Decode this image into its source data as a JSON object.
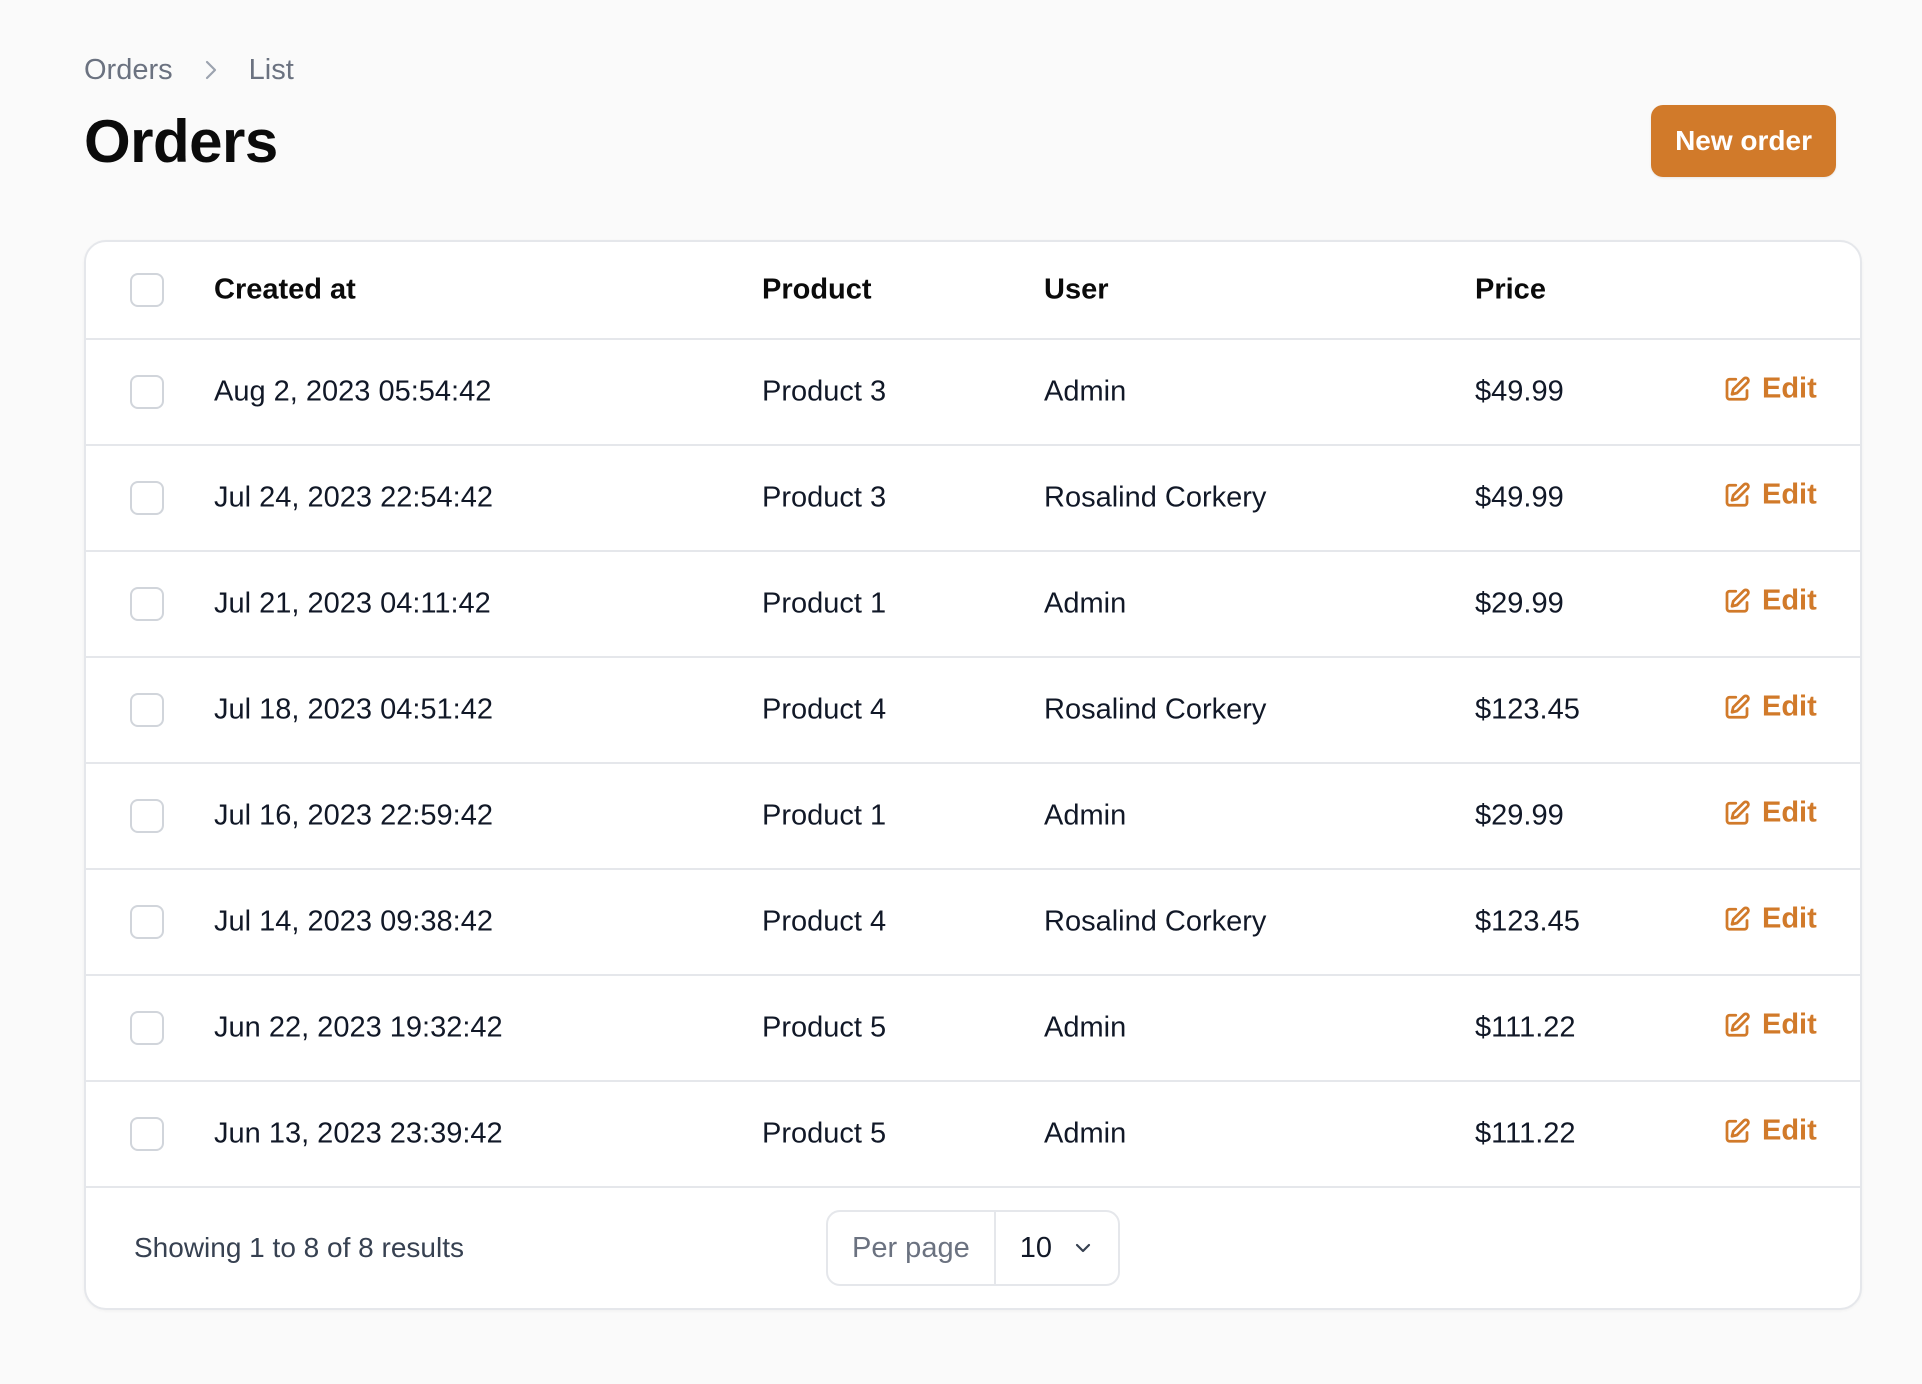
{
  "breadcrumb": {
    "items": [
      "Orders",
      "List"
    ]
  },
  "header": {
    "title": "Orders",
    "new_order_label": "New order"
  },
  "table": {
    "columns": {
      "created_at": "Created at",
      "product": "Product",
      "user": "User",
      "price": "Price"
    },
    "rows": [
      {
        "created_at": "Aug 2, 2023 05:54:42",
        "product": "Product 3",
        "user": "Admin",
        "price": "$49.99",
        "action": "Edit"
      },
      {
        "created_at": "Jul 24, 2023 22:54:42",
        "product": "Product 3",
        "user": "Rosalind Corkery",
        "price": "$49.99",
        "action": "Edit"
      },
      {
        "created_at": "Jul 21, 2023 04:11:42",
        "product": "Product 1",
        "user": "Admin",
        "price": "$29.99",
        "action": "Edit"
      },
      {
        "created_at": "Jul 18, 2023 04:51:42",
        "product": "Product 4",
        "user": "Rosalind Corkery",
        "price": "$123.45",
        "action": "Edit"
      },
      {
        "created_at": "Jul 16, 2023 22:59:42",
        "product": "Product 1",
        "user": "Admin",
        "price": "$29.99",
        "action": "Edit"
      },
      {
        "created_at": "Jul 14, 2023 09:38:42",
        "product": "Product 4",
        "user": "Rosalind Corkery",
        "price": "$123.45",
        "action": "Edit"
      },
      {
        "created_at": "Jun 22, 2023 19:32:42",
        "product": "Product 5",
        "user": "Admin",
        "price": "$111.22",
        "action": "Edit"
      },
      {
        "created_at": "Jun 13, 2023 23:39:42",
        "product": "Product 5",
        "user": "Admin",
        "price": "$111.22",
        "action": "Edit"
      }
    ]
  },
  "footer": {
    "showing_text": "Showing 1 to 8 of 8 results",
    "per_page_label": "Per page",
    "per_page_value": "10"
  },
  "colors": {
    "accent": "#d17a2a",
    "border": "#e5e7eb",
    "background": "#fafafa"
  },
  "icons": {
    "breadcrumb_separator": "chevron-right-icon",
    "edit": "pencil-square-icon",
    "select": "chevron-down-icon"
  }
}
